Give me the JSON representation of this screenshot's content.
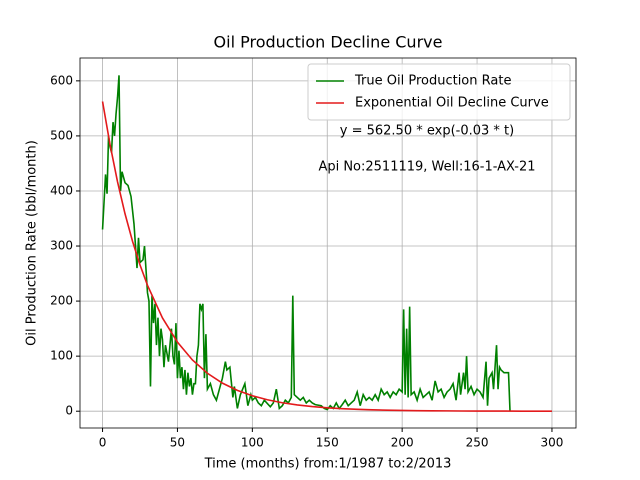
{
  "chart_data": {
    "type": "line",
    "title": "Oil Production Decline Curve",
    "xlabel": "Time (months) from:1/1987 to:2/2013",
    "ylabel": "Oil Production Rate (bbl/month)",
    "annotations": [
      "y = 562.50 * exp(-0.03 * t)",
      "Api No:2511119, Well:16-1-AX-21"
    ],
    "xlim": [
      -15.05,
      316.05
    ],
    "ylim": [
      -30.5,
      641.5
    ],
    "xticks": [
      0,
      50,
      100,
      150,
      200,
      250,
      300
    ],
    "yticks": [
      0,
      100,
      200,
      300,
      400,
      500,
      600
    ],
    "grid": true,
    "legend": "upper right",
    "series": [
      {
        "name": "True Oil Production Rate",
        "color": "#008000",
        "x": [
          0,
          2,
          3,
          4,
          5,
          6,
          7,
          8,
          9,
          10,
          11,
          12,
          13,
          15,
          17,
          19,
          21,
          22,
          23,
          24,
          25,
          27,
          28,
          30,
          31,
          32,
          33,
          34,
          35,
          36,
          37,
          38,
          39,
          40,
          41,
          42,
          44,
          46,
          47,
          48,
          49,
          50,
          51,
          52,
          53,
          54,
          55,
          56,
          57,
          58,
          59,
          60,
          61,
          62,
          63,
          64,
          65,
          66,
          67,
          68,
          69,
          70,
          72,
          74,
          76,
          78,
          80,
          82,
          83,
          85,
          87,
          88,
          90,
          92,
          95,
          97,
          99,
          100,
          102,
          104,
          106,
          108,
          112,
          114,
          116,
          118,
          120,
          122,
          124,
          126,
          127,
          128,
          130,
          132,
          134,
          136,
          138,
          140,
          142,
          146,
          148,
          150,
          152,
          154,
          156,
          158,
          160,
          162,
          164,
          166,
          168,
          170,
          172,
          174,
          176,
          178,
          180,
          182,
          184,
          186,
          188,
          190,
          192,
          194,
          196,
          198,
          200,
          201,
          202,
          203,
          204,
          205,
          206,
          208,
          210,
          212,
          214,
          216,
          218,
          220,
          222,
          224,
          226,
          228,
          230,
          232,
          234,
          236,
          238,
          239,
          241,
          242,
          243,
          244,
          246,
          248,
          250,
          252,
          254,
          256,
          257,
          258,
          260,
          261,
          263,
          264,
          265,
          266,
          268,
          271,
          272
        ],
        "values": [
          330,
          430,
          395,
          500,
          480,
          470,
          525,
          500,
          540,
          570,
          610,
          400,
          435,
          415,
          410,
          390,
          340,
          300,
          260,
          315,
          270,
          275,
          300,
          215,
          200,
          45,
          210,
          160,
          195,
          120,
          170,
          100,
          150,
          130,
          80,
          120,
          90,
          150,
          100,
          85,
          160,
          60,
          110,
          60,
          80,
          40,
          75,
          30,
          70,
          45,
          60,
          30,
          50,
          50,
          100,
          120,
          195,
          185,
          195,
          60,
          140,
          40,
          50,
          30,
          20,
          40,
          60,
          90,
          75,
          80,
          25,
          45,
          5,
          30,
          50,
          10,
          30,
          20,
          25,
          15,
          10,
          20,
          8,
          15,
          40,
          5,
          10,
          20,
          15,
          25,
          210,
          30,
          25,
          20,
          25,
          15,
          20,
          15,
          12,
          10,
          5,
          3,
          10,
          5,
          15,
          5,
          12,
          20,
          10,
          15,
          20,
          35,
          10,
          30,
          20,
          25,
          20,
          30,
          20,
          40,
          30,
          35,
          25,
          35,
          30,
          40,
          35,
          185,
          30,
          150,
          25,
          190,
          30,
          35,
          20,
          40,
          25,
          30,
          35,
          20,
          55,
          35,
          40,
          25,
          35,
          40,
          50,
          20,
          70,
          30,
          70,
          40,
          100,
          35,
          45,
          30,
          40,
          35,
          25,
          90,
          10,
          60,
          70,
          40,
          120,
          40,
          80,
          75,
          70,
          70,
          0
        ]
      },
      {
        "name": "Exponential Oil Decline Curve",
        "color": "#e31a1c",
        "x": [
          0,
          5,
          10,
          15,
          20,
          25,
          30,
          40,
          50,
          60,
          70,
          80,
          90,
          100,
          110,
          120,
          130,
          140,
          150,
          160,
          170,
          180,
          190,
          200,
          210,
          220,
          230,
          240,
          250,
          260,
          270,
          280,
          290,
          300
        ],
        "values": [
          562.5,
          484.2,
          416.7,
          358.6,
          308.7,
          265.7,
          228.7,
          169.4,
          125.5,
          93.0,
          68.9,
          51.0,
          37.8,
          28.0,
          20.8,
          15.4,
          11.4,
          8.4,
          6.2,
          4.6,
          3.4,
          2.5,
          1.9,
          1.4,
          1.0,
          0.8,
          0.6,
          0.4,
          0.3,
          0.2,
          0.17,
          0.13,
          0.09,
          0.07
        ]
      }
    ]
  }
}
